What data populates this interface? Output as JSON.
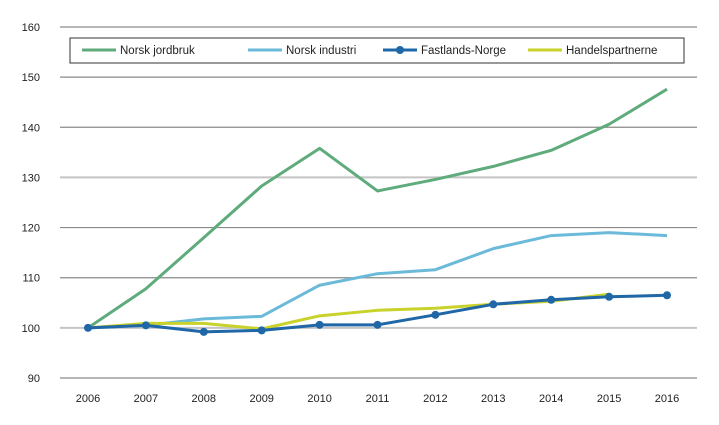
{
  "chart_data": {
    "type": "line",
    "title": "",
    "xlabel": "",
    "ylabel": "",
    "x": [
      2006,
      2007,
      2008,
      2009,
      2010,
      2011,
      2012,
      2013,
      2014,
      2015,
      2016
    ],
    "ylim": [
      90,
      160
    ],
    "yticks": [
      90,
      100,
      110,
      120,
      130,
      140,
      150,
      160
    ],
    "grid": true,
    "legend_position": "top",
    "series": [
      {
        "name": "Norsk jordbruk",
        "color": "#5fab7c",
        "markers": false,
        "values": [
          100,
          107.8,
          118,
          128.3,
          135.8,
          127.3,
          129.6,
          132.2,
          135.4,
          140.6,
          147.6
        ]
      },
      {
        "name": "Norsk industri",
        "color": "#6bbad9",
        "markers": false,
        "values": [
          100,
          100.5,
          101.8,
          102.3,
          108.5,
          110.8,
          111.6,
          115.8,
          118.4,
          119.0,
          118.4
        ]
      },
      {
        "name": "Fastlands-Norge",
        "color": "#1f67a6",
        "markers": true,
        "values": [
          100,
          100.5,
          99.2,
          99.5,
          100.6,
          100.6,
          102.6,
          104.7,
          105.6,
          106.2,
          106.5
        ]
      },
      {
        "name": "Handelspartnerne",
        "color": "#c9d22a",
        "markers": false,
        "values": [
          100,
          100.9,
          100.9,
          99.8,
          102.4,
          103.5,
          103.9,
          104.7,
          105.3,
          106.7,
          null
        ]
      }
    ]
  }
}
